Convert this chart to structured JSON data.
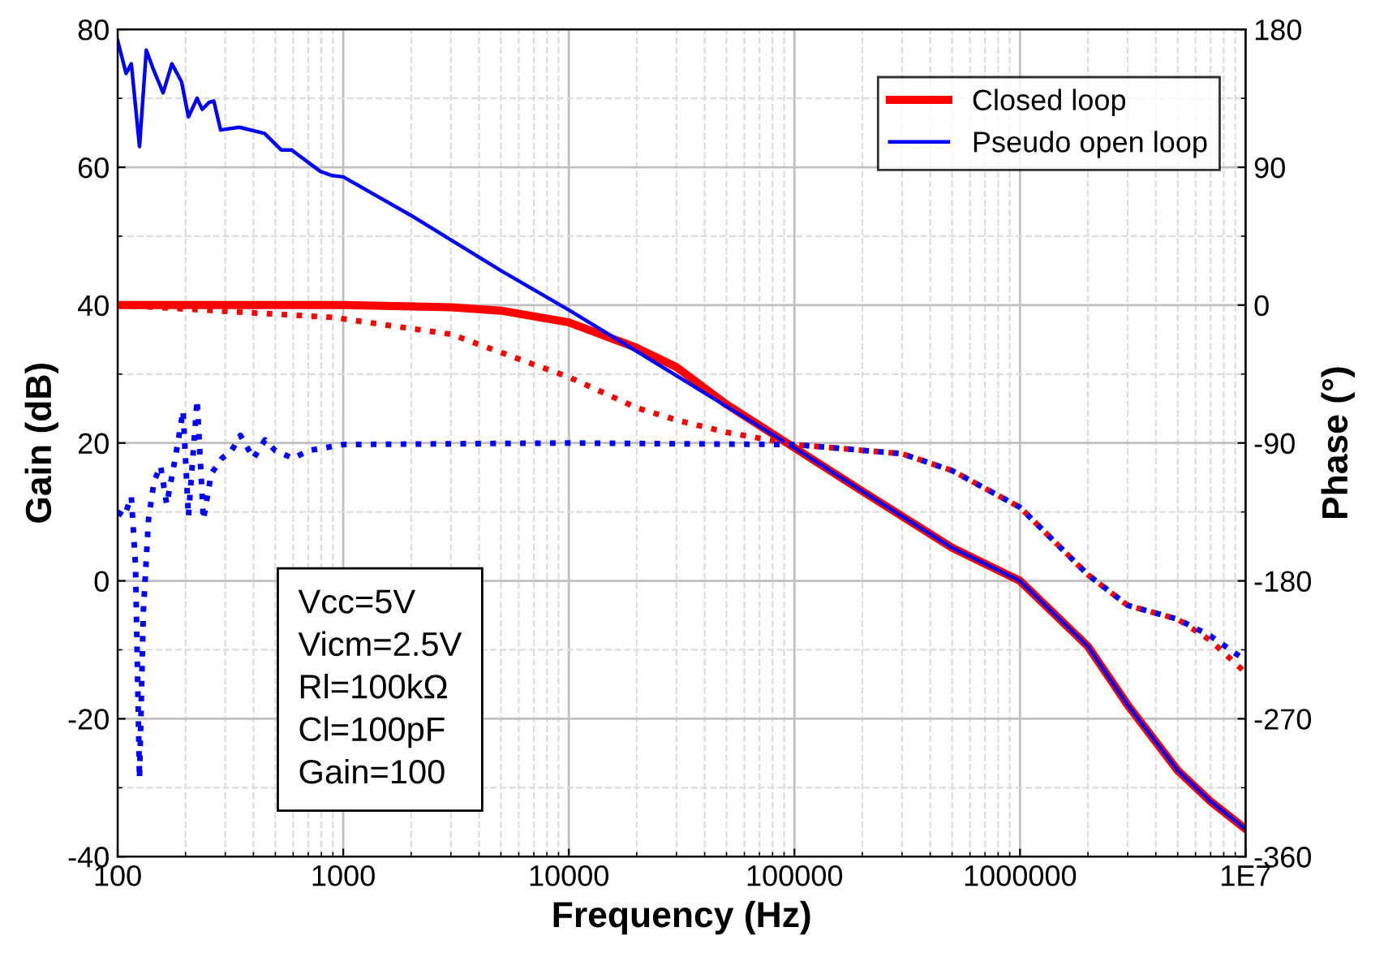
{
  "chart_data": {
    "type": "line",
    "xlabel": "Frequency (Hz)",
    "ylabel": "Gain (dB)",
    "y2label": "Phase (°)",
    "log": "x",
    "grid": true,
    "legend": "top right",
    "line_style": "solid",
    "marker": "none",
    "xlim": [
      100,
      10000000
    ],
    "xticks": [
      100,
      1000,
      10000,
      100000,
      1000000,
      {
        "value": 10000000,
        "label": "1E7"
      }
    ],
    "ylim": [
      -40,
      80
    ],
    "yticks": [
      -40,
      -20,
      0,
      20,
      40,
      60,
      80
    ],
    "y2lim": [
      -360,
      180
    ],
    "y2ticks": [
      -360,
      -270,
      -180,
      -90,
      0,
      90,
      180
    ],
    "annotations": [
      "Vcc=5V",
      "Vicm=2.5V",
      "Rl=100kΩ",
      "Cl=100pF",
      "Gain=100"
    ],
    "series": [
      {
        "name": "Closed loop",
        "color": "#ff0000",
        "x": [
          100,
          1000,
          3000,
          5000,
          10000,
          20000,
          30000,
          50000,
          100000,
          200000,
          500000,
          1000000,
          2000000,
          3000000,
          5000000,
          7000000,
          10000000
        ],
        "values": [
          40,
          40,
          39.7,
          39.2,
          37.5,
          33.8,
          31,
          25.6,
          19.3,
          13,
          4.8,
          0,
          -9.5,
          -18,
          -27.5,
          -32,
          -36
        ]
      },
      {
        "name": "Pseudo open loop",
        "color": "#0000ff",
        "x": [
          100,
          109,
          115,
          125,
          134,
          144,
          159,
          174,
          192,
          206,
          225,
          237,
          254,
          267,
          286,
          346,
          448,
          532,
          590,
          792,
          890,
          1000,
          2000,
          5000,
          10000,
          20000,
          50000,
          100000,
          200000,
          500000,
          1000000,
          2000000,
          3000000,
          5000000,
          7000000,
          10000000
        ],
        "values": [
          78.4,
          73.6,
          75,
          63,
          77,
          74.2,
          70.8,
          75,
          72.4,
          67.3,
          70,
          68.4,
          69.4,
          69.6,
          65.4,
          65.8,
          64.9,
          62.5,
          62.5,
          59.4,
          58.8,
          58.6,
          53,
          45,
          39.3,
          33.3,
          25.3,
          19.3,
          13,
          4.8,
          0,
          -9.5,
          -18,
          -27.5,
          -32,
          -36
        ]
      },
      {
        "color": "#ff0000",
        "axis": "y2",
        "line_style": "dotted",
        "x": [
          100,
          900,
          3000,
          10000,
          20000,
          30000,
          50000,
          100000,
          300000,
          500000,
          1000000,
          2000000,
          3000000,
          5000000,
          7000000,
          10000000
        ],
        "values": [
          0,
          -8,
          -19,
          -47,
          -67,
          -75,
          -83,
          -91,
          -97,
          -108,
          -132,
          -176,
          -196,
          -205,
          -219,
          -240
        ]
      },
      {
        "color": "#0000ff",
        "axis": "y2",
        "line_style": "dotted",
        "x": [
          100,
          107,
          115,
          120,
          125,
          130,
          137,
          145,
          155,
          165,
          180,
          195,
          206,
          225,
          240,
          260,
          290,
          320,
          350,
          400,
          450,
          500,
          600,
          700,
          1000,
          10000,
          100000,
          300000,
          500000,
          1000000,
          2000000,
          3000000,
          5000000,
          7000000,
          10000000
        ],
        "values": [
          -135,
          -138,
          -125,
          -170,
          -309,
          -200,
          -140,
          -115,
          -105,
          -130,
          -100,
          -69,
          -138,
          -62,
          -140,
          -110,
          -100,
          -95,
          -85,
          -100,
          -88,
          -95,
          -100,
          -95,
          -91,
          -90,
          -91,
          -97,
          -108,
          -132,
          -176,
          -196,
          -205,
          -216,
          -232
        ]
      }
    ]
  }
}
